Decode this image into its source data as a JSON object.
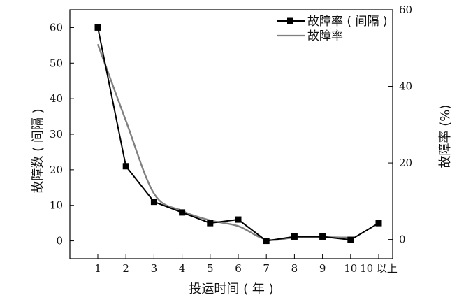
{
  "chart_data": {
    "type": "line",
    "xlabel": "投运时间 ( 年 )",
    "ylabel_left": "故障数 ( 间隔 )",
    "ylabel_right": "故障率 (%)",
    "categories": [
      "1",
      "2",
      "3",
      "4",
      "5",
      "6",
      "7",
      "8",
      "9",
      "10",
      "10 以上"
    ],
    "left_axis": {
      "ylim": [
        -5,
        65
      ],
      "ticks": [
        "0",
        "10",
        "20",
        "30",
        "40",
        "50",
        "60"
      ]
    },
    "right_axis": {
      "ylim": [
        -5,
        60
      ],
      "ticks": [
        "0",
        "20",
        "40",
        "60"
      ]
    },
    "legend_position": "top-right",
    "series": [
      {
        "name": "故障率 ( 间隔 )",
        "axis": "left",
        "marker": "square",
        "color": "#000000",
        "values": [
          60,
          21,
          11,
          8,
          5,
          6,
          0,
          1.2,
          1.2,
          0.3,
          5
        ]
      },
      {
        "name": "故障率",
        "axis": "right",
        "marker": "none",
        "color": "#808080",
        "values": [
          51,
          31,
          12,
          7.5,
          5,
          3.5,
          0,
          0.5,
          0.6,
          0.5,
          null
        ]
      }
    ]
  }
}
